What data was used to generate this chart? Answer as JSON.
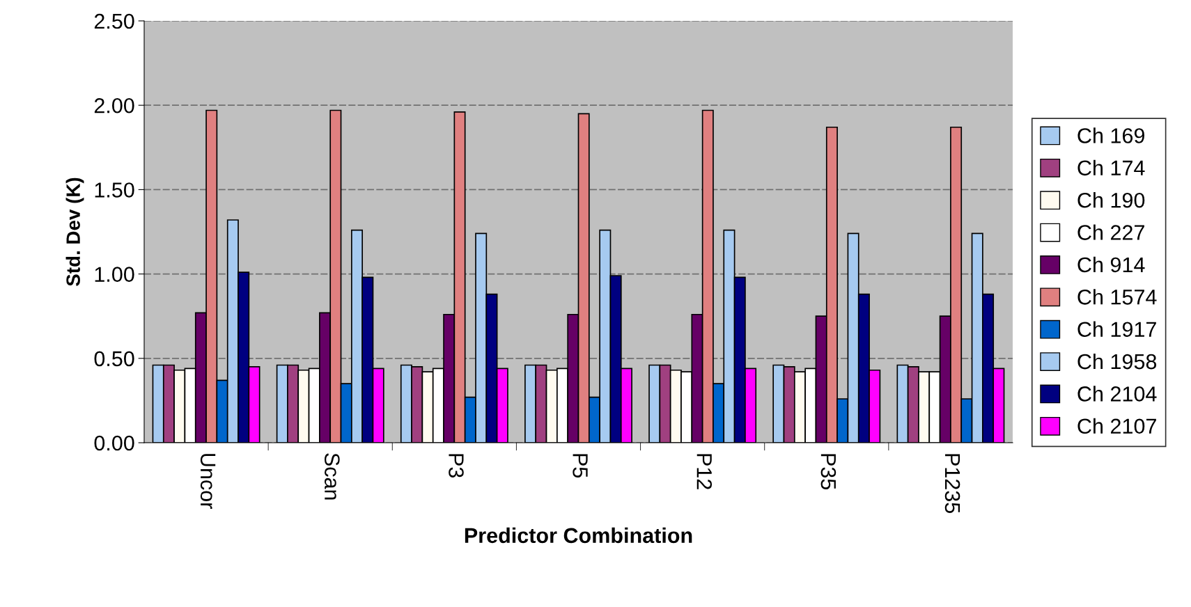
{
  "chart_data": {
    "type": "bar",
    "xlabel": "Predictor Combination",
    "ylabel": "Std. Dev (K)",
    "categories": [
      "Uncor",
      "Scan",
      "P3",
      "P5",
      "P12",
      "P35",
      "P1235"
    ],
    "series": [
      {
        "name": "Ch 169",
        "color": "#a6caf0",
        "values": [
          0.46,
          0.46,
          0.46,
          0.46,
          0.46,
          0.46,
          0.46
        ]
      },
      {
        "name": "Ch 174",
        "color": "#a04080",
        "values": [
          0.46,
          0.46,
          0.45,
          0.46,
          0.46,
          0.45,
          0.45
        ]
      },
      {
        "name": "Ch 190",
        "color": "#fffbf0",
        "values": [
          0.43,
          0.43,
          0.42,
          0.43,
          0.43,
          0.42,
          0.42
        ]
      },
      {
        "name": "Ch 227",
        "color": "#ffffff",
        "values": [
          0.44,
          0.44,
          0.44,
          0.44,
          0.42,
          0.44,
          0.42
        ]
      },
      {
        "name": "Ch 914",
        "color": "#660066",
        "values": [
          0.77,
          0.77,
          0.76,
          0.76,
          0.76,
          0.75,
          0.75
        ]
      },
      {
        "name": "Ch 1574",
        "color": "#e08080",
        "values": [
          1.97,
          1.97,
          1.96,
          1.95,
          1.97,
          1.87,
          1.87
        ]
      },
      {
        "name": "Ch 1917",
        "color": "#0066cc",
        "values": [
          0.37,
          0.35,
          0.27,
          0.27,
          0.35,
          0.26,
          0.26
        ]
      },
      {
        "name": "Ch 1958",
        "color": "#a6caf0",
        "values": [
          1.32,
          1.26,
          1.24,
          1.26,
          1.26,
          1.24,
          1.24
        ]
      },
      {
        "name": "Ch 2104",
        "color": "#000080",
        "values": [
          1.01,
          0.98,
          0.88,
          0.99,
          0.98,
          0.88,
          0.88
        ]
      },
      {
        "name": "Ch 2107",
        "color": "#ff00ff",
        "values": [
          0.45,
          0.44,
          0.44,
          0.44,
          0.44,
          0.43,
          0.44
        ]
      }
    ],
    "ylim": [
      0,
      2.5
    ],
    "yticks": [
      {
        "value": 0,
        "label": "0.00"
      },
      {
        "value": 0.5,
        "label": "0.50"
      },
      {
        "value": 1,
        "label": "1.00"
      },
      {
        "value": 1.5,
        "label": "1.50"
      },
      {
        "value": 2,
        "label": "2.00"
      },
      {
        "value": 2.5,
        "label": "2.50"
      }
    ],
    "grid": "y",
    "legend": "right"
  }
}
